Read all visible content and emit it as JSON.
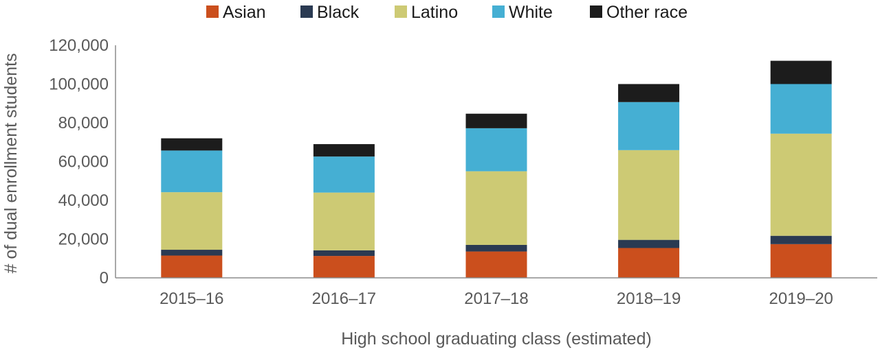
{
  "chart_data": {
    "type": "bar",
    "stacked": true,
    "title": "",
    "xlabel": "High school graduating class (estimated)",
    "ylabel": "# of dual enrollment students",
    "categories": [
      "2015–16",
      "2016–17",
      "2017–18",
      "2018–19",
      "2019–20"
    ],
    "ylim": [
      0,
      120000
    ],
    "yticks": [
      0,
      20000,
      40000,
      60000,
      80000,
      100000,
      120000
    ],
    "ytick_labels": [
      "0",
      "20,000",
      "40,000",
      "60,000",
      "80,000",
      "100,000",
      "120,000"
    ],
    "grid": false,
    "legend_position": "top",
    "series": [
      {
        "name": "Asian",
        "color": "#cb4f1d",
        "values": [
          11500,
          11300,
          13600,
          15400,
          17400
        ]
      },
      {
        "name": "Black",
        "color": "#2a3a52",
        "values": [
          3000,
          2900,
          3400,
          4200,
          4300
        ]
      },
      {
        "name": "Latino",
        "color": "#cdca74",
        "values": [
          29700,
          29800,
          38000,
          46300,
          52700
        ]
      },
      {
        "name": "White",
        "color": "#45afd3",
        "values": [
          21500,
          18600,
          22200,
          24800,
          25600
        ]
      },
      {
        "name": "Other race",
        "color": "#1c1c1c",
        "values": [
          6300,
          6400,
          7500,
          9300,
          12000
        ]
      }
    ]
  }
}
